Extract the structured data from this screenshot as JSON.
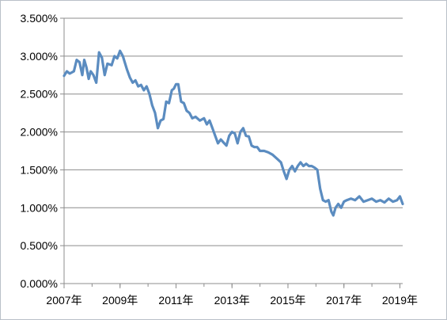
{
  "chart_data": {
    "type": "line",
    "title": "",
    "xlabel": "",
    "ylabel": "",
    "x_ticks": [
      "2007年",
      "2009年",
      "2011年",
      "2013年",
      "2015年",
      "2017年",
      "2019年"
    ],
    "y_ticks": [
      "0.000%",
      "0.500%",
      "1.000%",
      "1.500%",
      "2.000%",
      "2.500%",
      "3.000%",
      "3.500%"
    ],
    "xlim": [
      2007.0,
      2019.1
    ],
    "ylim": [
      0,
      3.5
    ],
    "grid": "horizontal",
    "legend": "none",
    "series": [
      {
        "color": "#5b8cc0",
        "x": [
          2007.0,
          2007.1,
          2007.2,
          2007.35,
          2007.45,
          2007.55,
          2007.65,
          2007.72,
          2007.8,
          2007.88,
          2007.95,
          2008.05,
          2008.15,
          2008.25,
          2008.35,
          2008.45,
          2008.55,
          2008.7,
          2008.8,
          2008.9,
          2009.0,
          2009.1,
          2009.25,
          2009.35,
          2009.45,
          2009.55,
          2009.65,
          2009.75,
          2009.85,
          2009.95,
          2010.05,
          2010.15,
          2010.25,
          2010.35,
          2010.45,
          2010.55,
          2010.65,
          2010.75,
          2010.85,
          2010.92,
          2011.0,
          2011.08,
          2011.18,
          2011.28,
          2011.38,
          2011.48,
          2011.58,
          2011.7,
          2011.85,
          2012.0,
          2012.1,
          2012.2,
          2012.3,
          2012.4,
          2012.5,
          2012.6,
          2012.7,
          2012.8,
          2012.9,
          2013.0,
          2013.1,
          2013.2,
          2013.3,
          2013.4,
          2013.5,
          2013.6,
          2013.7,
          2013.8,
          2013.9,
          2014.0,
          2014.15,
          2014.3,
          2014.45,
          2014.6,
          2014.75,
          2014.85,
          2014.95,
          2015.05,
          2015.15,
          2015.25,
          2015.35,
          2015.45,
          2015.55,
          2015.65,
          2015.75,
          2015.85,
          2015.95,
          2016.05,
          2016.15,
          2016.25,
          2016.35,
          2016.45,
          2016.55,
          2016.62,
          2016.7,
          2016.8,
          2016.9,
          2017.0,
          2017.1,
          2017.25,
          2017.4,
          2017.55,
          2017.7,
          2017.85,
          2018.0,
          2018.15,
          2018.3,
          2018.45,
          2018.6,
          2018.75,
          2018.9,
          2019.0,
          2019.1
        ],
        "values": [
          2.74,
          2.8,
          2.77,
          2.8,
          2.95,
          2.92,
          2.75,
          2.95,
          2.85,
          2.7,
          2.8,
          2.75,
          2.65,
          3.05,
          2.98,
          2.75,
          2.9,
          2.88,
          3.0,
          2.97,
          3.07,
          3.0,
          2.82,
          2.72,
          2.65,
          2.68,
          2.6,
          2.62,
          2.55,
          2.6,
          2.5,
          2.35,
          2.25,
          2.05,
          2.15,
          2.17,
          2.4,
          2.38,
          2.55,
          2.57,
          2.63,
          2.63,
          2.4,
          2.38,
          2.28,
          2.25,
          2.18,
          2.2,
          2.15,
          2.18,
          2.1,
          2.15,
          2.05,
          1.95,
          1.85,
          1.9,
          1.86,
          1.82,
          1.95,
          2.0,
          1.98,
          1.85,
          2.0,
          2.05,
          1.95,
          1.94,
          1.82,
          1.8,
          1.8,
          1.75,
          1.75,
          1.73,
          1.7,
          1.65,
          1.6,
          1.48,
          1.38,
          1.5,
          1.55,
          1.48,
          1.55,
          1.6,
          1.55,
          1.58,
          1.55,
          1.55,
          1.53,
          1.5,
          1.25,
          1.1,
          1.08,
          1.1,
          0.95,
          0.9,
          1.0,
          1.05,
          1.0,
          1.08,
          1.1,
          1.12,
          1.1,
          1.15,
          1.08,
          1.1,
          1.12,
          1.08,
          1.1,
          1.07,
          1.12,
          1.08,
          1.1,
          1.15,
          1.05
        ]
      }
    ]
  }
}
